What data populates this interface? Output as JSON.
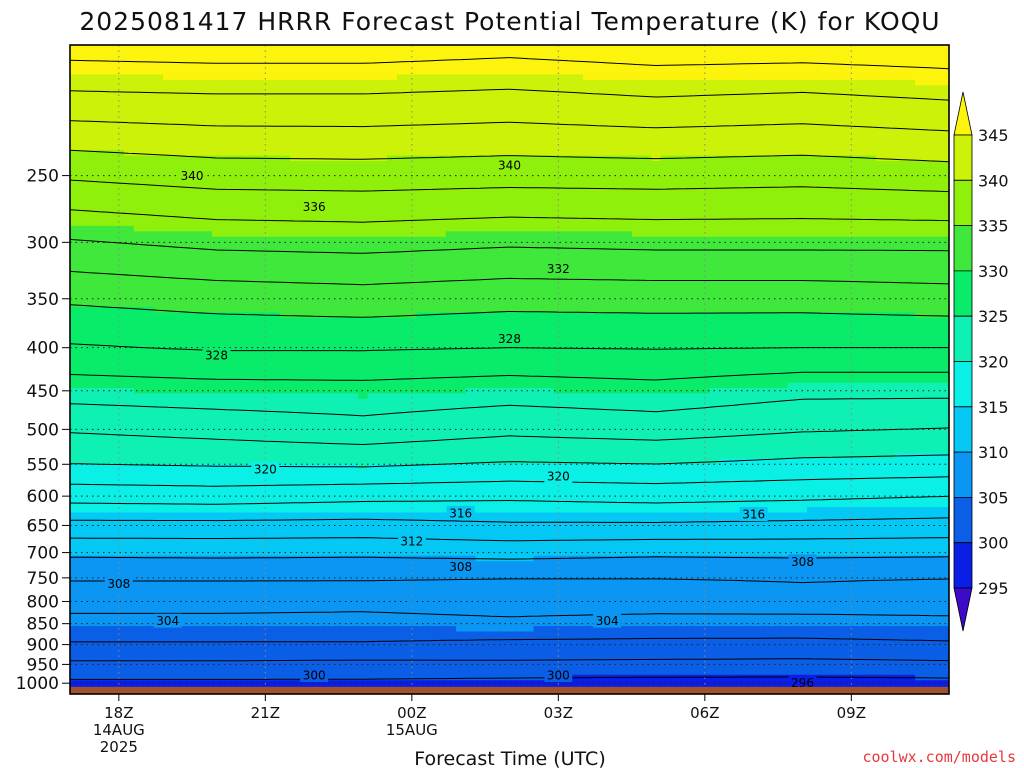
{
  "chart_data": {
    "type": "heatmap",
    "title": "2025081417 HRRR Forecast Potential Temperature (K) for KOQU",
    "xlabel": "Forecast Time (UTC)",
    "ylabel": "",
    "x_ticks": [
      {
        "label": "18Z",
        "sub": [
          "14AUG",
          "2025"
        ],
        "hour": 1
      },
      {
        "label": "21Z",
        "sub": [],
        "hour": 4
      },
      {
        "label": "00Z",
        "sub": [
          "15AUG"
        ],
        "hour": 7
      },
      {
        "label": "03Z",
        "sub": [],
        "hour": 10
      },
      {
        "label": "06Z",
        "sub": [],
        "hour": 13
      },
      {
        "label": "09Z",
        "sub": [],
        "hour": 16
      }
    ],
    "xlim": [
      0,
      18
    ],
    "y_ticks": [
      250,
      300,
      350,
      400,
      450,
      500,
      550,
      600,
      650,
      700,
      750,
      800,
      850,
      900,
      950,
      1000
    ],
    "ylim": [
      1030,
      175
    ],
    "y_scale": "log",
    "colorbar": {
      "labels": [
        345,
        340,
        335,
        330,
        325,
        320,
        315,
        310,
        305,
        300,
        295
      ],
      "bands": [
        {
          "min": 345,
          "max": 350,
          "color": "#fcf40c"
        },
        {
          "min": 340,
          "max": 345,
          "color": "#cbf208"
        },
        {
          "min": 335,
          "max": 340,
          "color": "#8ff00c"
        },
        {
          "min": 330,
          "max": 335,
          "color": "#3fe83a"
        },
        {
          "min": 325,
          "max": 330,
          "color": "#09ec6a"
        },
        {
          "min": 320,
          "max": 325,
          "color": "#0ff1b4"
        },
        {
          "min": 315,
          "max": 320,
          "color": "#0af0e6"
        },
        {
          "min": 310,
          "max": 315,
          "color": "#05c8f5"
        },
        {
          "min": 305,
          "max": 310,
          "color": "#0a96f2"
        },
        {
          "min": 300,
          "max": 305,
          "color": "#0a5fe6"
        },
        {
          "min": 295,
          "max": 300,
          "color": "#0a1ee6"
        },
        {
          "min": 290,
          "max": 295,
          "color": "#3c0ac8"
        }
      ]
    },
    "ground_color": "#a0522d",
    "profile_pressure": [
      1030,
      1000,
      950,
      900,
      850,
      800,
      750,
      700,
      650,
      600,
      550,
      500,
      450,
      400,
      350,
      300,
      250,
      200,
      175
    ],
    "theta_profile": [
      {
        "hour": 0,
        "theta": [
          297.6,
          299.6,
          301.6,
          303.8,
          305.4,
          306.7,
          308.2,
          310.4,
          313.4,
          316.8,
          320.0,
          322.2,
          324.9,
          327.8,
          330.3,
          333.8,
          338.3,
          343.8,
          347.0
        ]
      },
      {
        "hour": 3,
        "theta": [
          297.6,
          299.6,
          301.6,
          303.8,
          305.4,
          306.7,
          308.2,
          310.5,
          313.4,
          317.0,
          320.2,
          322.7,
          325.2,
          328.2,
          330.8,
          334.5,
          338.9,
          344.0,
          347.2
        ]
      },
      {
        "hour": 6,
        "theta": [
          297.7,
          299.6,
          301.5,
          303.8,
          305.3,
          306.6,
          308.2,
          310.4,
          313.3,
          316.6,
          320.3,
          323.3,
          325.3,
          328.2,
          331.1,
          334.7,
          339.0,
          344.0,
          347.2
        ]
      },
      {
        "hour": 9,
        "theta": [
          297.6,
          299.4,
          301.6,
          303.5,
          305.6,
          306.9,
          308.0,
          310.7,
          313.7,
          316.4,
          319.8,
          322.5,
          324.9,
          328.0,
          330.7,
          334.3,
          338.8,
          343.7,
          346.8
        ]
      },
      {
        "hour": 12,
        "theta": [
          297.4,
          299.3,
          301.5,
          303.5,
          305.2,
          307.0,
          308.0,
          310.4,
          313.7,
          316.7,
          320.0,
          322.9,
          325.3,
          328.1,
          330.8,
          334.5,
          338.9,
          344.2,
          347.3
        ]
      },
      {
        "hour": 15,
        "theta": [
          297.4,
          299.3,
          301.4,
          303.5,
          305.1,
          307.2,
          308.2,
          310.5,
          313.5,
          316.4,
          319.5,
          322.2,
          324.5,
          328.0,
          330.8,
          334.5,
          338.7,
          343.9,
          347.2
        ]
      },
      {
        "hour": 18,
        "theta": [
          297.6,
          299.4,
          301.6,
          303.7,
          305.4,
          307.1,
          308.0,
          310.4,
          313.3,
          316.0,
          319.3,
          321.9,
          324.5,
          328.0,
          331.1,
          334.5,
          339.1,
          344.4,
          347.5
        ]
      }
    ],
    "contour_interval": 2,
    "labeled_contours": [
      {
        "value": 340,
        "hour": 2.5,
        "p": 250
      },
      {
        "value": 340,
        "hour": 9.0,
        "p": 243
      },
      {
        "value": 336,
        "hour": 5.0,
        "p": 272
      },
      {
        "value": 332,
        "hour": 10.0,
        "p": 322
      },
      {
        "value": 328,
        "hour": 3.0,
        "p": 408
      },
      {
        "value": 328,
        "hour": 9.0,
        "p": 390
      },
      {
        "value": 320,
        "hour": 4.0,
        "p": 557
      },
      {
        "value": 320,
        "hour": 10.0,
        "p": 568
      },
      {
        "value": 316,
        "hour": 8.0,
        "p": 628
      },
      {
        "value": 316,
        "hour": 14.0,
        "p": 630
      },
      {
        "value": 312,
        "hour": 7.0,
        "p": 678
      },
      {
        "value": 308,
        "hour": 1.0,
        "p": 762
      },
      {
        "value": 308,
        "hour": 8.0,
        "p": 727
      },
      {
        "value": 308,
        "hour": 15.0,
        "p": 717
      },
      {
        "value": 304,
        "hour": 2.0,
        "p": 843
      },
      {
        "value": 304,
        "hour": 11.0,
        "p": 843
      },
      {
        "value": 300,
        "hour": 5.0,
        "p": 978
      },
      {
        "value": 300,
        "hour": 10.0,
        "p": 978
      },
      {
        "value": 296,
        "hour": 15.0,
        "p": 998
      }
    ]
  },
  "credit": "coolwx.com/models",
  "credit_color": "#e8383c"
}
